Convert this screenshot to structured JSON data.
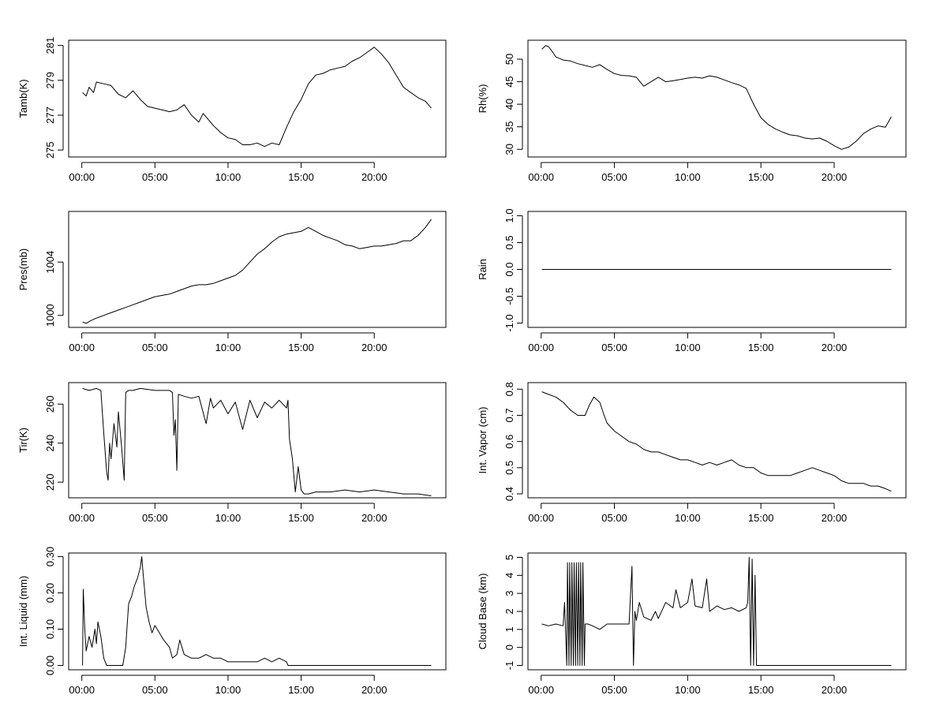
{
  "chart_data": [
    {
      "type": "line",
      "ylabel": "Tamb(K)",
      "xlim": [
        -0.9,
        24.9
      ],
      "ylim": [
        274.6,
        281.3
      ],
      "xticks": [
        0,
        5,
        10,
        15,
        20
      ],
      "xtick_labels": [
        "00:00",
        "05:00",
        "10:00",
        "15:00",
        "20:00"
      ],
      "yticks": [
        275,
        277,
        279,
        281
      ],
      "ytick_labels": [
        "275",
        "277",
        "279",
        "281"
      ],
      "grid": false,
      "series": [
        {
          "x": [
            0.05,
            0.3,
            0.5,
            0.8,
            1.0,
            1.5,
            2.0,
            2.5,
            3.0,
            3.5,
            4.0,
            4.5,
            5.0,
            5.5,
            6.0,
            6.5,
            7.0,
            7.5,
            8.0,
            8.3,
            9.0,
            9.5,
            10.0,
            10.5,
            11.0,
            11.5,
            12.0,
            12.5,
            13.0,
            13.5,
            14.0,
            14.5,
            15.0,
            15.5,
            16.0,
            16.5,
            17.0,
            17.5,
            18.0,
            18.5,
            19.0,
            19.5,
            20.0,
            20.5,
            21.0,
            21.5,
            22.0,
            22.5,
            23.0,
            23.5,
            23.9
          ],
          "y": [
            278.3,
            278.1,
            278.6,
            278.3,
            278.9,
            278.8,
            278.7,
            278.2,
            278.0,
            278.4,
            277.9,
            277.5,
            277.4,
            277.3,
            277.2,
            277.3,
            277.6,
            277.0,
            276.6,
            277.1,
            276.4,
            276.0,
            275.7,
            275.6,
            275.3,
            275.3,
            275.4,
            275.2,
            275.4,
            275.3,
            276.3,
            277.2,
            277.9,
            278.8,
            279.3,
            279.4,
            279.6,
            279.7,
            279.8,
            280.1,
            280.3,
            280.6,
            280.9,
            280.5,
            280.0,
            279.3,
            278.6,
            278.3,
            278.0,
            277.8,
            277.4
          ]
        }
      ]
    },
    {
      "type": "line",
      "ylabel": "Rh(%)",
      "xlim": [
        -0.9,
        24.9
      ],
      "ylim": [
        28.3,
        54.2
      ],
      "xticks": [
        0,
        5,
        10,
        15,
        20
      ],
      "xtick_labels": [
        "00:00",
        "05:00",
        "10:00",
        "15:00",
        "20:00"
      ],
      "yticks": [
        30,
        35,
        40,
        45,
        50
      ],
      "ytick_labels": [
        "30",
        "35",
        "40",
        "45",
        "50"
      ],
      "grid": false,
      "series": [
        {
          "x": [
            0.05,
            0.3,
            0.5,
            0.8,
            1.0,
            1.5,
            2.0,
            2.5,
            3.0,
            3.5,
            4.0,
            4.5,
            5.0,
            5.5,
            6.0,
            6.5,
            7.0,
            7.5,
            8.0,
            8.5,
            9.0,
            9.5,
            10.0,
            10.5,
            11.0,
            11.5,
            12.0,
            12.5,
            13.0,
            13.5,
            14.0,
            14.5,
            15.0,
            15.5,
            16.0,
            16.5,
            17.0,
            17.5,
            18.0,
            18.5,
            19.0,
            19.5,
            20.0,
            20.5,
            21.0,
            21.5,
            22.0,
            22.5,
            23.0,
            23.5,
            23.9
          ],
          "y": [
            52.2,
            53.0,
            52.8,
            51.5,
            50.5,
            49.8,
            49.6,
            49.0,
            48.6,
            48.2,
            48.8,
            47.7,
            46.8,
            46.4,
            46.3,
            46.0,
            44.0,
            45.0,
            46.0,
            45.0,
            45.2,
            45.5,
            45.8,
            46.0,
            45.8,
            46.3,
            46.0,
            45.4,
            44.8,
            44.3,
            43.5,
            40.0,
            37.0,
            35.5,
            34.5,
            33.8,
            33.2,
            33.0,
            32.5,
            32.3,
            32.5,
            31.8,
            30.8,
            30.0,
            30.5,
            31.8,
            33.5,
            34.5,
            35.2,
            34.9,
            37.2
          ]
        }
      ]
    },
    {
      "type": "line",
      "ylabel": "Pres(mb)",
      "xlim": [
        -0.9,
        24.9
      ],
      "ylim": [
        999.1,
        1007.8
      ],
      "xticks": [
        0,
        5,
        10,
        15,
        20
      ],
      "xtick_labels": [
        "00:00",
        "05:00",
        "10:00",
        "15:00",
        "20:00"
      ],
      "yticks": [
        1000,
        1004
      ],
      "ytick_labels": [
        "1000",
        "1004"
      ],
      "grid": false,
      "series": [
        {
          "x": [
            0.05,
            0.3,
            0.6,
            1.0,
            1.5,
            2.0,
            2.5,
            3.0,
            3.5,
            4.0,
            4.5,
            5.0,
            5.5,
            6.0,
            6.5,
            7.0,
            7.5,
            8.0,
            8.5,
            9.0,
            9.5,
            10.0,
            10.5,
            11.0,
            11.5,
            12.0,
            12.5,
            13.0,
            13.5,
            14.0,
            14.5,
            15.0,
            15.5,
            16.0,
            16.5,
            17.0,
            17.5,
            18.0,
            18.5,
            19.0,
            19.5,
            20.0,
            20.5,
            21.0,
            21.5,
            22.0,
            22.5,
            23.0,
            23.5,
            23.9
          ],
          "y": [
            999.5,
            999.4,
            999.6,
            999.8,
            1000.0,
            1000.2,
            1000.4,
            1000.6,
            1000.8,
            1001.0,
            1001.2,
            1001.4,
            1001.5,
            1001.6,
            1001.8,
            1002.0,
            1002.2,
            1002.3,
            1002.3,
            1002.4,
            1002.6,
            1002.8,
            1003.0,
            1003.4,
            1004.0,
            1004.6,
            1005.0,
            1005.5,
            1005.9,
            1006.1,
            1006.2,
            1006.3,
            1006.6,
            1006.3,
            1006.0,
            1005.8,
            1005.6,
            1005.3,
            1005.2,
            1005.0,
            1005.1,
            1005.2,
            1005.2,
            1005.3,
            1005.4,
            1005.6,
            1005.6,
            1006.0,
            1006.6,
            1007.2
          ]
        }
      ]
    },
    {
      "type": "line",
      "ylabel": "Rain",
      "xlim": [
        -0.9,
        24.9
      ],
      "ylim": [
        -1.08,
        1.08
      ],
      "xticks": [
        0,
        5,
        10,
        15,
        20
      ],
      "xtick_labels": [
        "00:00",
        "05:00",
        "10:00",
        "15:00",
        "20:00"
      ],
      "yticks": [
        -1.0,
        -0.5,
        0.0,
        0.5,
        1.0
      ],
      "ytick_labels": [
        "-1.0",
        "-0.5",
        "0.0",
        "0.5",
        "1.0"
      ],
      "grid": false,
      "series": [
        {
          "x": [
            0.05,
            23.9
          ],
          "y": [
            0,
            0
          ]
        }
      ]
    },
    {
      "type": "line",
      "ylabel": "Tir(K)",
      "xlim": [
        -0.9,
        24.9
      ],
      "ylim": [
        212,
        271
      ],
      "xticks": [
        0,
        5,
        10,
        15,
        20
      ],
      "xtick_labels": [
        "00:00",
        "05:00",
        "10:00",
        "15:00",
        "20:00"
      ],
      "yticks": [
        220,
        240,
        260
      ],
      "ytick_labels": [
        "220",
        "240",
        "260"
      ],
      "grid": false,
      "series": [
        {
          "x": [
            0.05,
            0.5,
            1.0,
            1.3,
            1.5,
            1.7,
            1.8,
            1.9,
            2.0,
            2.2,
            2.4,
            2.5,
            2.7,
            2.8,
            2.9,
            3.0,
            3.2,
            3.5,
            4.0,
            5.0,
            6.0,
            6.2,
            6.3,
            6.4,
            6.5,
            6.6,
            7.0,
            7.5,
            8.0,
            8.5,
            8.8,
            9.0,
            9.5,
            10.0,
            10.5,
            11.0,
            11.5,
            12.0,
            12.5,
            13.0,
            13.5,
            14.0,
            14.1,
            14.2,
            14.4,
            14.6,
            14.8,
            15.0,
            15.2,
            15.5,
            16.0,
            17.0,
            18.0,
            19.0,
            20.0,
            21.0,
            22.0,
            23.0,
            23.9
          ],
          "y": [
            268,
            267,
            268,
            267,
            245,
            225,
            221,
            240,
            232,
            250,
            238,
            256,
            240,
            230,
            221,
            266,
            267,
            267,
            268,
            267,
            267,
            266,
            244,
            252,
            226,
            265,
            264,
            263,
            264,
            250,
            263,
            258,
            262,
            255,
            261,
            247,
            262,
            253,
            261,
            258,
            262,
            258,
            262,
            242,
            232,
            215,
            228,
            216,
            214,
            214,
            215,
            215,
            216,
            215,
            216,
            215,
            214,
            214,
            213
          ]
        }
      ]
    },
    {
      "type": "line",
      "ylabel": "Int. Vapor (cm)",
      "xlim": [
        -0.9,
        24.9
      ],
      "ylim": [
        0.385,
        0.825
      ],
      "xticks": [
        0,
        5,
        10,
        15,
        20
      ],
      "xtick_labels": [
        "00:00",
        "05:00",
        "10:00",
        "15:00",
        "20:00"
      ],
      "yticks": [
        0.4,
        0.5,
        0.6,
        0.7,
        0.8
      ],
      "ytick_labels": [
        "0.4",
        "0.5",
        "0.6",
        "0.7",
        "0.8"
      ],
      "grid": false,
      "series": [
        {
          "x": [
            0.05,
            0.5,
            1.0,
            1.5,
            2.0,
            2.5,
            3.0,
            3.3,
            3.6,
            4.0,
            4.3,
            4.5,
            5.0,
            5.5,
            6.0,
            6.5,
            7.0,
            7.5,
            8.0,
            8.5,
            9.0,
            9.5,
            10.0,
            10.5,
            11.0,
            11.5,
            12.0,
            12.5,
            13.0,
            13.5,
            14.0,
            14.5,
            15.0,
            15.5,
            16.0,
            16.5,
            17.0,
            17.5,
            18.0,
            18.5,
            19.0,
            19.5,
            20.0,
            20.5,
            21.0,
            21.5,
            22.0,
            22.5,
            23.0,
            23.5,
            23.9
          ],
          "y": [
            0.79,
            0.78,
            0.77,
            0.75,
            0.72,
            0.7,
            0.7,
            0.74,
            0.77,
            0.75,
            0.7,
            0.67,
            0.64,
            0.62,
            0.6,
            0.59,
            0.57,
            0.56,
            0.56,
            0.55,
            0.54,
            0.53,
            0.53,
            0.52,
            0.51,
            0.52,
            0.51,
            0.52,
            0.53,
            0.51,
            0.5,
            0.5,
            0.48,
            0.47,
            0.47,
            0.47,
            0.47,
            0.48,
            0.49,
            0.5,
            0.49,
            0.48,
            0.47,
            0.45,
            0.44,
            0.44,
            0.44,
            0.43,
            0.43,
            0.42,
            0.41
          ]
        }
      ]
    },
    {
      "type": "line",
      "ylabel": "Int. Liquid (mm)",
      "xlim": [
        -0.9,
        24.9
      ],
      "ylim": [
        -0.012,
        0.31
      ],
      "xticks": [
        0,
        5,
        10,
        15,
        20
      ],
      "xtick_labels": [
        "00:00",
        "05:00",
        "10:00",
        "15:00",
        "20:00"
      ],
      "yticks": [
        0.0,
        0.1,
        0.2,
        0.3
      ],
      "ytick_labels": [
        "0.00",
        "0.10",
        "0.20",
        "0.30"
      ],
      "grid": false,
      "series": [
        {
          "x": [
            0.05,
            0.1,
            0.2,
            0.3,
            0.5,
            0.7,
            0.9,
            1.0,
            1.1,
            1.3,
            1.5,
            1.6,
            1.7,
            2.0,
            2.5,
            2.8,
            3.0,
            3.1,
            3.2,
            3.4,
            3.6,
            3.8,
            4.0,
            4.1,
            4.2,
            4.4,
            4.6,
            4.8,
            5.0,
            5.3,
            5.6,
            6.0,
            6.2,
            6.5,
            6.7,
            7.0,
            7.5,
            8.0,
            8.5,
            9.0,
            9.5,
            10.0,
            10.5,
            11.0,
            11.5,
            12.0,
            12.5,
            13.0,
            13.5,
            14.0,
            14.1,
            15.0,
            16.0,
            17.0,
            18.0,
            19.0,
            20.0,
            21.0,
            22.0,
            23.0,
            23.9
          ],
          "y": [
            0.0,
            0.21,
            0.1,
            0.04,
            0.08,
            0.05,
            0.1,
            0.06,
            0.12,
            0.08,
            0.02,
            0.01,
            0.0,
            0.0,
            0.0,
            0.0,
            0.05,
            0.11,
            0.17,
            0.19,
            0.22,
            0.24,
            0.27,
            0.3,
            0.25,
            0.16,
            0.12,
            0.09,
            0.11,
            0.09,
            0.07,
            0.05,
            0.02,
            0.03,
            0.07,
            0.03,
            0.02,
            0.02,
            0.03,
            0.02,
            0.02,
            0.01,
            0.01,
            0.01,
            0.01,
            0.01,
            0.02,
            0.01,
            0.02,
            0.01,
            0.0,
            0.0,
            0.0,
            0.0,
            0.0,
            0.0,
            0.0,
            0.0,
            0.0,
            0.0,
            0.0
          ]
        }
      ]
    },
    {
      "type": "line",
      "ylabel": "Cloud Base (km)",
      "xlim": [
        -0.9,
        24.9
      ],
      "ylim": [
        -1.24,
        5.24
      ],
      "xticks": [
        0,
        5,
        10,
        15,
        20
      ],
      "xtick_labels": [
        "00:00",
        "05:00",
        "10:00",
        "15:00",
        "20:00"
      ],
      "yticks": [
        -1,
        0,
        1,
        2,
        3,
        4,
        5
      ],
      "ytick_labels": [
        "-1",
        "0",
        "1",
        "2",
        "3",
        "4",
        "5"
      ],
      "grid": false,
      "series": [
        {
          "x": [
            0.05,
            0.5,
            1.0,
            1.5,
            1.6,
            1.75,
            1.8,
            1.9,
            1.95,
            2.05,
            2.1,
            2.2,
            2.25,
            2.35,
            2.4,
            2.5,
            2.55,
            2.65,
            2.7,
            2.8,
            2.85,
            2.95,
            3.0,
            3.2,
            3.5,
            4.0,
            4.5,
            5.0,
            5.5,
            6.0,
            6.2,
            6.3,
            6.4,
            6.5,
            6.7,
            7.0,
            7.5,
            7.8,
            8.0,
            8.5,
            9.0,
            9.2,
            9.5,
            10.0,
            10.3,
            10.5,
            11.0,
            11.3,
            11.5,
            12.0,
            12.5,
            13.0,
            13.5,
            14.0,
            14.1,
            14.2,
            14.3,
            14.4,
            14.5,
            14.6,
            14.7,
            15.0,
            16.0,
            17.0,
            18.0,
            19.0,
            20.0,
            21.0,
            22.0,
            23.0,
            23.9
          ],
          "y": [
            1.3,
            1.2,
            1.3,
            1.2,
            2.5,
            -1,
            4.7,
            -1,
            4.7,
            -1,
            4.7,
            -1,
            4.7,
            -1,
            4.7,
            -1,
            4.7,
            -1,
            4.7,
            -1,
            4.7,
            -1,
            1.3,
            1.3,
            1.2,
            1.0,
            1.3,
            1.3,
            1.3,
            1.3,
            4.5,
            -1,
            2.0,
            1.5,
            2.5,
            1.7,
            1.5,
            2.0,
            1.6,
            2.5,
            2.2,
            3.2,
            2.2,
            2.5,
            3.8,
            2.3,
            2.2,
            3.8,
            2.0,
            2.3,
            2.1,
            2.2,
            2.0,
            2.2,
            2.5,
            5.0,
            -1,
            4.9,
            -1,
            4.0,
            -1,
            -1,
            -1,
            -1,
            -1,
            -1,
            -1,
            -1,
            -1,
            -1,
            -1
          ]
        }
      ]
    }
  ]
}
